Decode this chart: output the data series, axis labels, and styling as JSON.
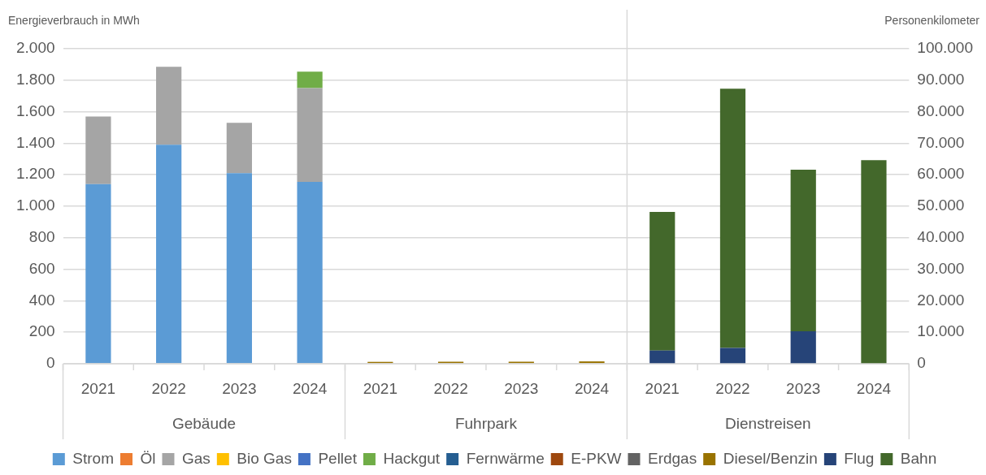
{
  "chart_data": {
    "type": "bar",
    "stacked": true,
    "ylabel": "Energieverbrauch in MWh",
    "y2label": "Personenkilometer",
    "categories": [
      "2021",
      "2022",
      "2023",
      "2024",
      "2021",
      "2022",
      "2023",
      "2024",
      "2021",
      "2022",
      "2023",
      "2024"
    ],
    "annotations": [
      "Gebäude",
      "Fuhrpark",
      "Dienstreisen"
    ],
    "series": [
      {
        "name": "Strom",
        "color": "#5b9bd5",
        "values": [
          1140,
          1390,
          1210,
          1155,
          null,
          null,
          null,
          null,
          null,
          null,
          null,
          null
        ]
      },
      {
        "name": "Öl",
        "color": "#ed7d31",
        "values": [
          null,
          null,
          null,
          null,
          null,
          null,
          null,
          null,
          null,
          null,
          null,
          null
        ]
      },
      {
        "name": "Gas",
        "color": "#a5a5a5",
        "values": [
          430,
          495,
          320,
          595,
          null,
          null,
          null,
          null,
          null,
          null,
          null,
          null
        ]
      },
      {
        "name": "Bio Gas",
        "color": "#ffc000",
        "values": [
          null,
          null,
          null,
          null,
          null,
          null,
          null,
          null,
          null,
          null,
          null,
          null
        ]
      },
      {
        "name": "Pellet",
        "color": "#4472c4",
        "values": [
          null,
          null,
          null,
          null,
          null,
          null,
          null,
          null,
          null,
          null,
          null,
          null
        ]
      },
      {
        "name": "Hackgut",
        "color": "#70ad47",
        "values": [
          null,
          null,
          null,
          105,
          null,
          null,
          null,
          null,
          null,
          null,
          null,
          null
        ]
      },
      {
        "name": "Fernwärme",
        "color": "#255e91",
        "values": [
          null,
          null,
          null,
          null,
          null,
          null,
          null,
          null,
          null,
          null,
          null,
          null
        ]
      },
      {
        "name": "E-PKW",
        "color": "#9e480e",
        "values": [
          null,
          null,
          null,
          null,
          null,
          null,
          null,
          null,
          null,
          null,
          null,
          null
        ]
      },
      {
        "name": "Erdgas",
        "color": "#636363",
        "values": [
          null,
          null,
          null,
          null,
          null,
          null,
          null,
          null,
          null,
          null,
          null,
          null
        ]
      },
      {
        "name": "Diesel/Benzin",
        "color": "#997300",
        "values": [
          null,
          null,
          null,
          null,
          12,
          13,
          13,
          15,
          null,
          null,
          null,
          null
        ]
      },
      {
        "name": "Flug",
        "color": "#264478",
        "axis": "y2",
        "values": [
          null,
          null,
          null,
          null,
          null,
          null,
          null,
          null,
          4200,
          5000,
          10300,
          null
        ]
      },
      {
        "name": "Bahn",
        "color": "#43682b",
        "axis": "y2",
        "values": [
          null,
          null,
          null,
          null,
          null,
          null,
          null,
          null,
          44000,
          82300,
          51300,
          64600
        ]
      }
    ],
    "ylim": [
      0,
      2000
    ],
    "yticks": [
      {
        "value": 0,
        "label": "0"
      },
      {
        "value": 200,
        "label": "200"
      },
      {
        "value": 400,
        "label": "400"
      },
      {
        "value": 600,
        "label": "600"
      },
      {
        "value": 800,
        "label": "800"
      },
      {
        "value": 1000,
        "label": "1.000"
      },
      {
        "value": 1200,
        "label": "1.200"
      },
      {
        "value": 1400,
        "label": "1.400"
      },
      {
        "value": 1600,
        "label": "1.600"
      },
      {
        "value": 1800,
        "label": "1.800"
      },
      {
        "value": 2000,
        "label": "2.000"
      }
    ],
    "y2lim": [
      0,
      100000
    ],
    "y2ticks": [
      {
        "value": 0,
        "label": "0"
      },
      {
        "value": 10000,
        "label": "10.000"
      },
      {
        "value": 20000,
        "label": "20.000"
      },
      {
        "value": 30000,
        "label": "30.000"
      },
      {
        "value": 40000,
        "label": "40.000"
      },
      {
        "value": 50000,
        "label": "50.000"
      },
      {
        "value": 60000,
        "label": "60.000"
      },
      {
        "value": 70000,
        "label": "70.000"
      },
      {
        "value": 80000,
        "label": "80.000"
      },
      {
        "value": 90000,
        "label": "90.000"
      },
      {
        "value": 100000,
        "label": "100.000"
      }
    ],
    "grid": "y",
    "legend": "bottom"
  }
}
